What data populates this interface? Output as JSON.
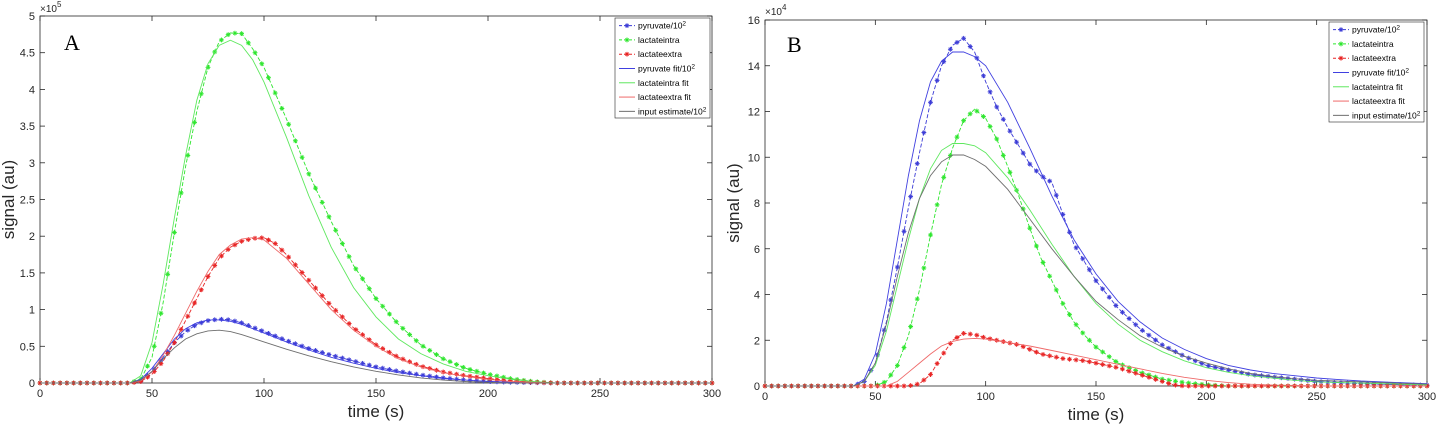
{
  "chart_data": [
    {
      "type": "line",
      "panel_label": "A",
      "xlabel": "time (s)",
      "ylabel": "signal (au)",
      "xlim": [
        0,
        300
      ],
      "ylim": [
        0,
        5
      ],
      "y_exponent_label": "×10",
      "y_exponent_power": "5",
      "xticks": [
        0,
        50,
        100,
        150,
        200,
        250,
        300
      ],
      "yticks": [
        0,
        0.5,
        1,
        1.5,
        2,
        2.5,
        3,
        3.5,
        4,
        4.5,
        5
      ],
      "ytick_labels": [
        "0",
        "0.5",
        "1",
        "1.5",
        "2",
        "2.5",
        "3",
        "3.5",
        "4",
        "4.5",
        "5"
      ],
      "legend_position": "top-right",
      "series": [
        {
          "legend": "pyruvate/10",
          "legend_sup": "2",
          "color": "#3b3bd6",
          "style": "dash-dot-marker",
          "x": [
            0,
            40,
            45,
            50,
            55,
            60,
            65,
            70,
            75,
            80,
            85,
            90,
            95,
            100,
            110,
            120,
            130,
            140,
            150,
            160,
            170,
            180,
            190,
            200,
            210,
            220,
            230,
            240,
            250,
            260,
            270,
            280,
            290,
            300
          ],
          "y": [
            0,
            0,
            0.03,
            0.15,
            0.35,
            0.55,
            0.7,
            0.8,
            0.85,
            0.87,
            0.86,
            0.82,
            0.76,
            0.7,
            0.58,
            0.47,
            0.38,
            0.3,
            0.22,
            0.16,
            0.11,
            0.07,
            0.04,
            0.02,
            0.01,
            0.005,
            0,
            0,
            0,
            0,
            0,
            0,
            0,
            0
          ]
        },
        {
          "legend": "lactateintra",
          "color": "#2ee62e",
          "style": "dash-dot-marker",
          "x": [
            0,
            40,
            45,
            50,
            55,
            60,
            65,
            70,
            75,
            80,
            85,
            90,
            95,
            100,
            105,
            110,
            120,
            130,
            140,
            150,
            160,
            170,
            180,
            190,
            200,
            210,
            220,
            230,
            240,
            250,
            300
          ],
          "y": [
            0,
            0,
            0.05,
            0.35,
            1.1,
            2.05,
            2.95,
            3.7,
            4.3,
            4.65,
            4.77,
            4.76,
            4.55,
            4.3,
            3.95,
            3.6,
            2.85,
            2.2,
            1.6,
            1.15,
            0.8,
            0.52,
            0.33,
            0.2,
            0.12,
            0.06,
            0.02,
            0,
            0,
            0,
            0
          ]
        },
        {
          "legend": "lactateextra",
          "color": "#e82525",
          "style": "dash-dot-marker",
          "x": [
            0,
            40,
            45,
            50,
            55,
            60,
            65,
            70,
            75,
            80,
            85,
            90,
            95,
            100,
            105,
            110,
            120,
            130,
            140,
            150,
            160,
            170,
            180,
            190,
            200,
            210,
            220,
            230,
            240,
            250,
            300
          ],
          "y": [
            0,
            0,
            0.02,
            0.12,
            0.3,
            0.55,
            0.85,
            1.15,
            1.45,
            1.7,
            1.85,
            1.93,
            1.97,
            1.98,
            1.9,
            1.75,
            1.4,
            1.05,
            0.75,
            0.52,
            0.35,
            0.23,
            0.15,
            0.1,
            0.06,
            0.03,
            0.01,
            0,
            0,
            0,
            0
          ]
        },
        {
          "legend": "pyruvate fit/10",
          "legend_sup": "2",
          "color": "#4040e0",
          "style": "solid",
          "x": [
            0,
            40,
            45,
            50,
            55,
            60,
            65,
            70,
            75,
            80,
            85,
            90,
            95,
            100,
            110,
            120,
            130,
            140,
            150,
            160,
            170,
            180,
            190,
            200,
            210,
            220,
            230,
            240,
            250,
            300
          ],
          "y": [
            0,
            0,
            0.05,
            0.2,
            0.4,
            0.6,
            0.74,
            0.82,
            0.86,
            0.86,
            0.84,
            0.8,
            0.74,
            0.68,
            0.56,
            0.45,
            0.35,
            0.27,
            0.2,
            0.14,
            0.1,
            0.06,
            0.04,
            0.02,
            0.01,
            0,
            0,
            0,
            0,
            0
          ]
        },
        {
          "legend": "lactateintra fit",
          "color": "#5fe85f",
          "style": "solid",
          "x": [
            0,
            40,
            45,
            50,
            55,
            60,
            65,
            70,
            75,
            80,
            85,
            90,
            95,
            100,
            110,
            120,
            130,
            140,
            150,
            160,
            170,
            180,
            190,
            200,
            210,
            220,
            230,
            240,
            250,
            300
          ],
          "y": [
            0,
            0,
            0.1,
            0.55,
            1.35,
            2.25,
            3.1,
            3.85,
            4.35,
            4.6,
            4.67,
            4.6,
            4.4,
            4.1,
            3.35,
            2.55,
            1.85,
            1.3,
            0.9,
            0.6,
            0.4,
            0.26,
            0.16,
            0.1,
            0.05,
            0.02,
            0,
            0,
            0,
            0
          ]
        },
        {
          "legend": "lactateextra fit",
          "color": "#ef6a6a",
          "style": "solid",
          "x": [
            0,
            40,
            45,
            50,
            55,
            60,
            65,
            70,
            75,
            80,
            85,
            90,
            95,
            100,
            110,
            120,
            130,
            140,
            150,
            160,
            170,
            180,
            190,
            200,
            210,
            220,
            230,
            240,
            250,
            300
          ],
          "y": [
            0,
            0,
            0.03,
            0.15,
            0.38,
            0.65,
            0.95,
            1.25,
            1.52,
            1.75,
            1.88,
            1.96,
            1.98,
            1.95,
            1.7,
            1.35,
            1.0,
            0.72,
            0.5,
            0.33,
            0.22,
            0.14,
            0.09,
            0.05,
            0.02,
            0.01,
            0,
            0,
            0,
            0
          ]
        },
        {
          "legend": "input estimate/10",
          "legend_sup": "2",
          "color": "#6e6e6e",
          "style": "solid",
          "x": [
            0,
            40,
            45,
            50,
            55,
            60,
            65,
            70,
            75,
            80,
            85,
            90,
            95,
            100,
            110,
            120,
            130,
            140,
            150,
            160,
            170,
            180,
            190,
            200,
            210,
            220,
            230,
            240,
            250,
            300
          ],
          "y": [
            0,
            0,
            0.04,
            0.16,
            0.33,
            0.48,
            0.6,
            0.67,
            0.71,
            0.72,
            0.7,
            0.66,
            0.61,
            0.56,
            0.46,
            0.37,
            0.29,
            0.22,
            0.16,
            0.11,
            0.07,
            0.04,
            0.02,
            0.01,
            0,
            0,
            0,
            0,
            0,
            0
          ]
        }
      ]
    },
    {
      "type": "line",
      "panel_label": "B",
      "xlabel": "time (s)",
      "ylabel": "signal (au)",
      "xlim": [
        0,
        300
      ],
      "ylim": [
        0,
        16
      ],
      "y_exponent_label": "×10",
      "y_exponent_power": "4",
      "xticks": [
        0,
        50,
        100,
        150,
        200,
        250,
        300
      ],
      "yticks": [
        0,
        2,
        4,
        6,
        8,
        10,
        12,
        14,
        16
      ],
      "ytick_labels": [
        "0",
        "2",
        "4",
        "6",
        "8",
        "10",
        "12",
        "14",
        "16"
      ],
      "legend_position": "top-right",
      "series": [
        {
          "legend": "pyruvate/10",
          "legend_sup": "2",
          "color": "#3b3bd6",
          "style": "dash-dot-marker",
          "x": [
            0,
            40,
            45,
            50,
            55,
            60,
            65,
            70,
            75,
            80,
            85,
            90,
            95,
            100,
            105,
            110,
            115,
            120,
            125,
            130,
            135,
            140,
            150,
            160,
            170,
            180,
            190,
            200,
            210,
            220,
            230,
            240,
            250,
            260,
            270,
            280,
            290,
            300
          ],
          "y": [
            0,
            0,
            0.2,
            1.0,
            2.8,
            5.2,
            7.8,
            10.2,
            12.4,
            14.0,
            14.9,
            15.2,
            14.6,
            13.3,
            12.2,
            11.3,
            10.5,
            9.7,
            9.2,
            8.9,
            7.5,
            6.2,
            4.6,
            3.4,
            2.5,
            1.8,
            1.3,
            0.9,
            0.7,
            0.5,
            0.4,
            0.3,
            0.2,
            0.15,
            0.1,
            0.08,
            0.05,
            0.04
          ]
        },
        {
          "legend": "lactateintra",
          "color": "#2ee62e",
          "style": "dash-dot-marker",
          "x": [
            0,
            50,
            55,
            60,
            65,
            70,
            75,
            80,
            85,
            90,
            95,
            100,
            105,
            110,
            115,
            120,
            125,
            130,
            135,
            140,
            145,
            150,
            160,
            170,
            180,
            190,
            200,
            210,
            250,
            300
          ],
          "y": [
            0,
            0,
            0.2,
            0.9,
            2.2,
            4.2,
            6.6,
            8.8,
            10.4,
            11.6,
            12.1,
            11.7,
            10.8,
            9.6,
            8.3,
            6.9,
            5.6,
            4.6,
            3.6,
            2.8,
            2.2,
            1.7,
            1.0,
            0.6,
            0.3,
            0.15,
            0.05,
            0,
            0,
            0
          ]
        },
        {
          "legend": "lactateextra",
          "color": "#e82525",
          "style": "dash-dot-marker",
          "x": [
            0,
            65,
            70,
            75,
            80,
            85,
            90,
            95,
            100,
            105,
            110,
            115,
            120,
            125,
            130,
            135,
            140,
            145,
            150,
            160,
            170,
            180,
            185,
            190,
            200,
            300
          ],
          "y": [
            0,
            0,
            0.1,
            0.5,
            1.3,
            2.0,
            2.3,
            2.25,
            2.1,
            2.0,
            1.9,
            1.8,
            1.6,
            1.4,
            1.3,
            1.2,
            1.15,
            1.1,
            1.0,
            0.8,
            0.5,
            0.2,
            0.05,
            0,
            0,
            0
          ]
        },
        {
          "legend": "pyruvate fit/10",
          "legend_sup": "2",
          "color": "#4040e0",
          "style": "solid",
          "x": [
            0,
            40,
            45,
            50,
            55,
            60,
            65,
            70,
            75,
            80,
            85,
            90,
            95,
            100,
            110,
            120,
            130,
            140,
            150,
            160,
            170,
            180,
            190,
            200,
            210,
            220,
            230,
            240,
            250,
            260,
            270,
            280,
            290,
            300
          ],
          "y": [
            0,
            0,
            0.3,
            1.4,
            3.6,
            6.4,
            9.2,
            11.6,
            13.3,
            14.2,
            14.6,
            14.6,
            14.4,
            14.0,
            12.4,
            10.4,
            8.3,
            6.4,
            4.9,
            3.7,
            2.8,
            2.1,
            1.6,
            1.2,
            0.9,
            0.7,
            0.55,
            0.45,
            0.35,
            0.28,
            0.22,
            0.18,
            0.14,
            0.1
          ]
        },
        {
          "legend": "lactateintra fit",
          "color": "#5fe85f",
          "style": "solid",
          "x": [
            0,
            40,
            45,
            50,
            55,
            60,
            65,
            70,
            75,
            80,
            85,
            90,
            95,
            100,
            110,
            120,
            130,
            140,
            150,
            160,
            170,
            180,
            190,
            200,
            210,
            220,
            230,
            240,
            250,
            300
          ],
          "y": [
            0,
            0,
            0.2,
            0.9,
            2.4,
            4.4,
            6.4,
            8.2,
            9.5,
            10.3,
            10.6,
            10.6,
            10.5,
            10.2,
            9.1,
            7.7,
            6.2,
            4.8,
            3.6,
            2.7,
            2.0,
            1.5,
            1.1,
            0.8,
            0.6,
            0.45,
            0.35,
            0.25,
            0.18,
            0.05
          ]
        },
        {
          "legend": "lactateextra fit",
          "color": "#ef6a6a",
          "style": "solid",
          "x": [
            0,
            55,
            60,
            65,
            70,
            75,
            80,
            85,
            90,
            95,
            100,
            110,
            120,
            130,
            140,
            150,
            160,
            170,
            180,
            190,
            200,
            210,
            220,
            230,
            240,
            250,
            300
          ],
          "y": [
            0,
            0,
            0.2,
            0.6,
            1.0,
            1.4,
            1.75,
            1.95,
            2.05,
            2.08,
            2.05,
            1.9,
            1.75,
            1.55,
            1.35,
            1.15,
            0.95,
            0.75,
            0.55,
            0.38,
            0.25,
            0.15,
            0.08,
            0.04,
            0.02,
            0,
            0
          ]
        },
        {
          "legend": "input estimate/10",
          "legend_sup": "2",
          "color": "#6e6e6e",
          "style": "solid",
          "x": [
            0,
            40,
            45,
            50,
            55,
            60,
            65,
            70,
            75,
            80,
            85,
            90,
            95,
            100,
            110,
            120,
            130,
            140,
            150,
            160,
            170,
            180,
            190,
            200,
            210,
            220,
            230,
            240,
            250,
            300
          ],
          "y": [
            0,
            0,
            0.2,
            1.0,
            2.7,
            4.8,
            6.7,
            8.2,
            9.2,
            9.8,
            10.1,
            10.1,
            9.9,
            9.6,
            8.6,
            7.3,
            6.0,
            4.8,
            3.7,
            2.9,
            2.2,
            1.7,
            1.3,
            1.0,
            0.75,
            0.55,
            0.42,
            0.32,
            0.25,
            0.08
          ]
        }
      ]
    }
  ]
}
